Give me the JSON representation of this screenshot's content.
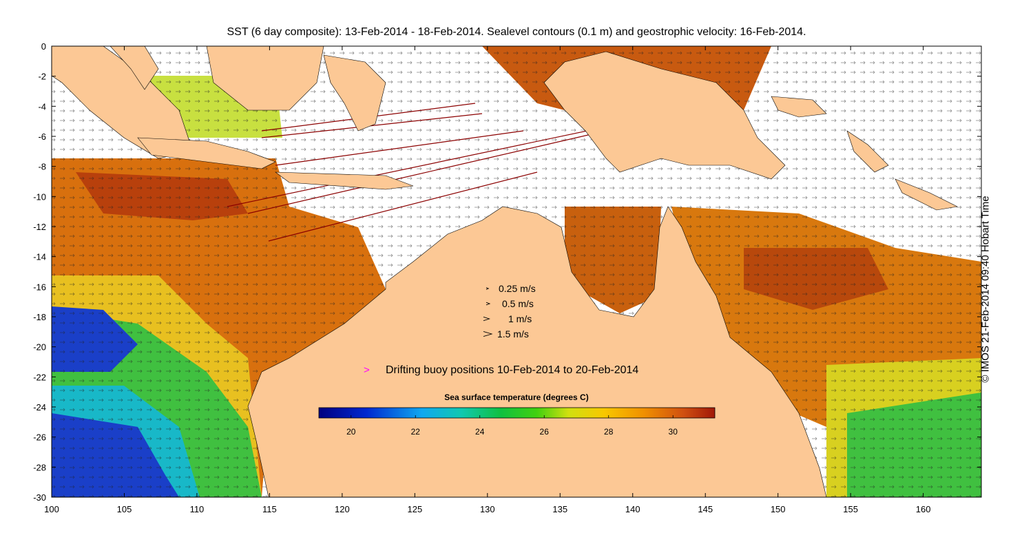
{
  "title": "SST (6 day composite): 13-Feb-2014 - 18-Feb-2014. Sealevel contours (0.1 m) and geostrophic velocity: 16-Feb-2014.",
  "credit": "© IMOS 21-Feb-2014 09:40 Hobart Time",
  "axes": {
    "x_ticks": [
      "100",
      "105",
      "110",
      "115",
      "120",
      "125",
      "130",
      "135",
      "140",
      "145",
      "150",
      "155",
      "160"
    ],
    "y_ticks": [
      "0",
      "-2",
      "-4",
      "-6",
      "-8",
      "-10",
      "-12",
      "-14",
      "-16",
      "-18",
      "-20",
      "-22",
      "-24",
      "-26",
      "-28",
      "-30"
    ],
    "xlim": [
      100,
      164
    ],
    "ylim": [
      -30,
      0
    ]
  },
  "velocity_legend": [
    {
      "label": "0.25 m/s",
      "speed": 0.25
    },
    {
      "label": "0.5 m/s",
      "speed": 0.5
    },
    {
      "label": "1 m/s",
      "speed": 1
    },
    {
      "label": "1.5 m/s",
      "speed": 1.5
    }
  ],
  "buoy_legend": {
    "symbol": ">",
    "label": "Drifting buoy positions 10-Feb-2014 to 20-Feb-2014",
    "color": "#ff00ff"
  },
  "colorbar": {
    "title": "Sea surface temperature (degrees C)",
    "ticks": [
      "20",
      "22",
      "24",
      "26",
      "28",
      "30"
    ],
    "range": [
      19,
      31.3
    ]
  },
  "colors": {
    "land": "#fcc895",
    "no_data": "#ffffff",
    "sst_warm": "#c8500e",
    "sst_mid": "#f0a000",
    "sst_cool": "#20c020",
    "sst_cold": "#1840d0",
    "reef_tracks": "#8b0000"
  }
}
